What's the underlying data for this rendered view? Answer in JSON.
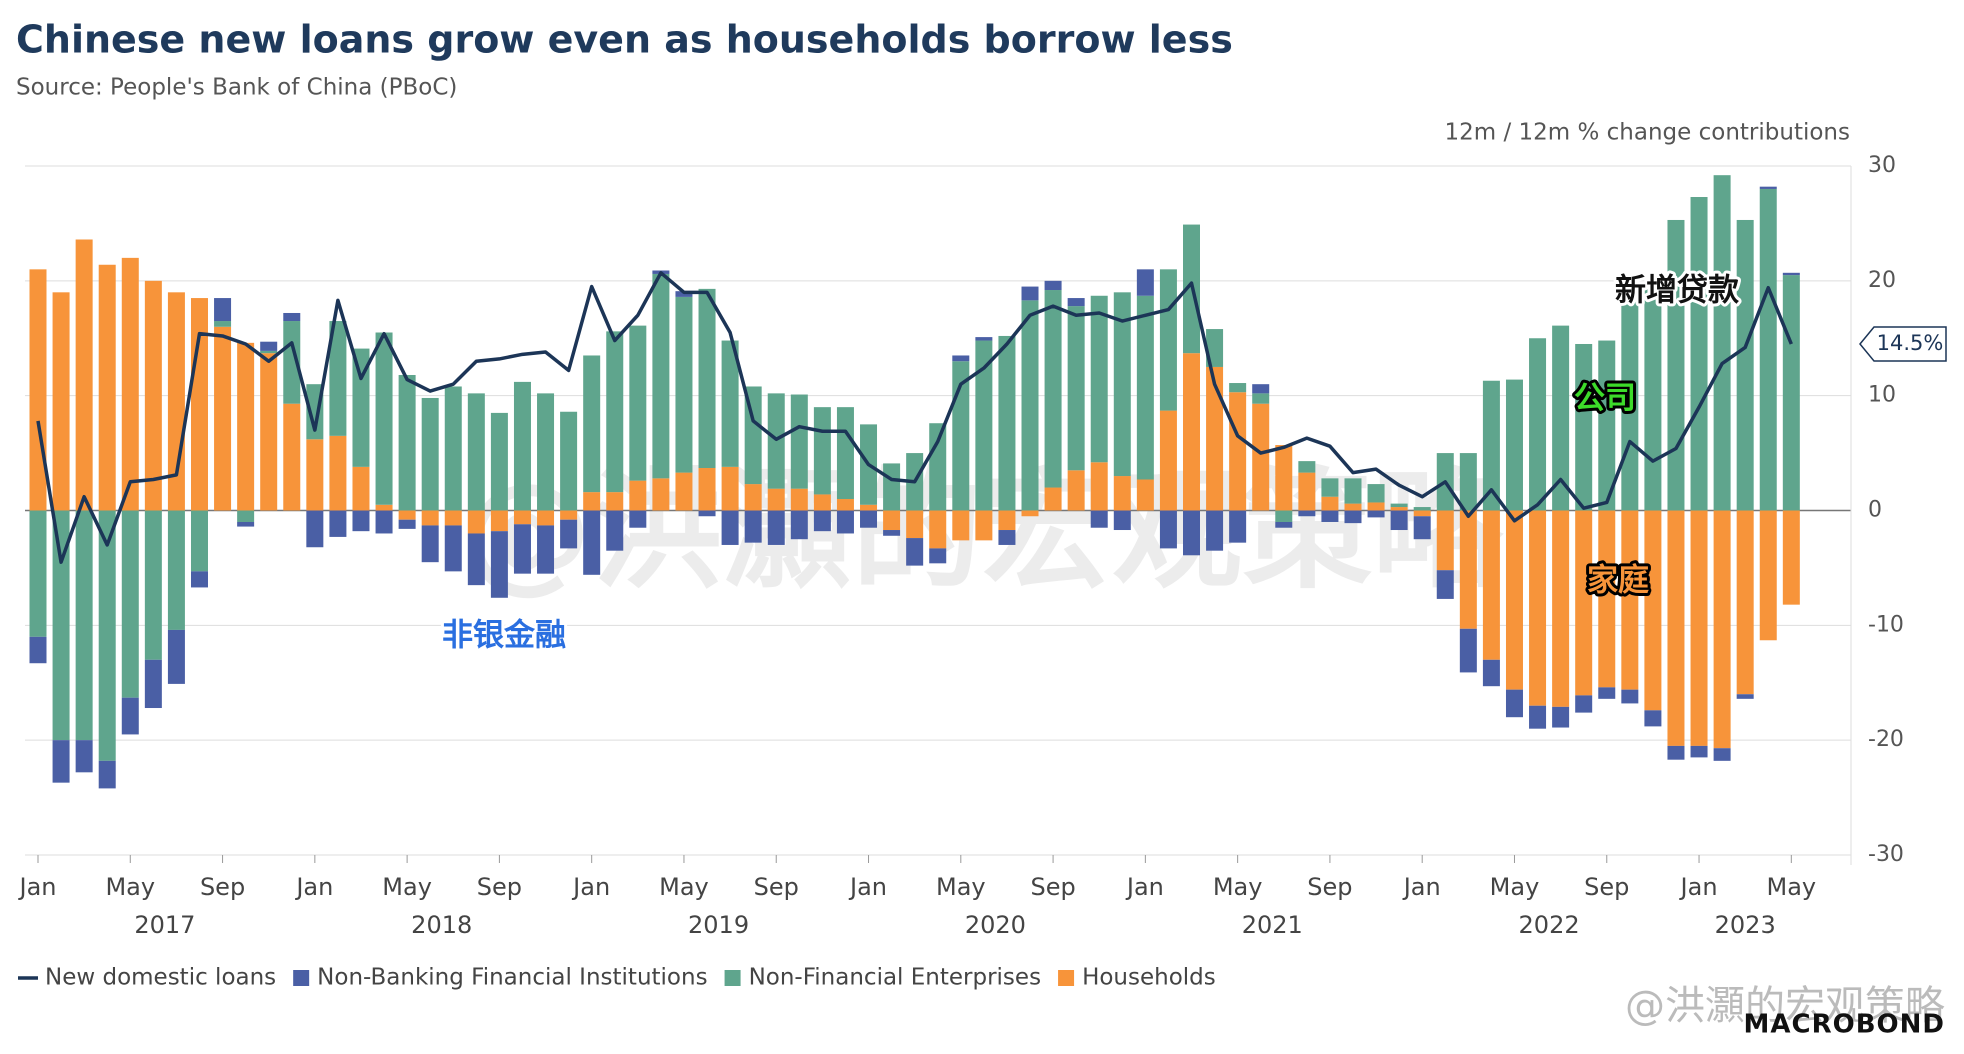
{
  "chart_data": {
    "type": "combo",
    "title": "Chinese new loans grow even as households borrow less",
    "subtitle": "Source: People's Bank of China (PBoC)",
    "axis_note": "12m / 12m % change contributions",
    "categories": [
      "Jan",
      null,
      null,
      null,
      "May",
      null,
      null,
      null,
      "Sep",
      null,
      null,
      null,
      "Jan",
      null,
      null,
      null,
      "May",
      null,
      null,
      null,
      "Sep",
      null,
      null,
      null,
      "Jan",
      null,
      null,
      null,
      "May",
      null,
      null,
      null,
      "Sep",
      null,
      null,
      null,
      "Jan",
      null,
      null,
      null,
      "May",
      null,
      null,
      null,
      "Sep",
      null,
      null,
      null,
      "Jan",
      null,
      null,
      null,
      "May",
      null,
      null,
      null,
      "Sep",
      null,
      null,
      null,
      "Jan",
      null,
      null,
      null,
      "May",
      null,
      null,
      null,
      "Sep",
      null,
      null,
      null,
      "Jan",
      null,
      null,
      null,
      "May"
    ],
    "years": [
      "2017",
      "2018",
      "2019",
      "2020",
      "2021",
      "2022",
      "2023"
    ],
    "ylim": [
      -30,
      30
    ],
    "yticks": [
      30,
      20,
      10,
      0,
      -10,
      -20,
      -30
    ],
    "grid": true,
    "series": [
      {
        "name": "New domestic loans",
        "type": "line",
        "color": "#1c3557",
        "values": [
          7.8,
          -4.5,
          1.2,
          -3,
          2.5,
          2.7,
          3.1,
          15.4,
          15.2,
          14.5,
          13,
          14.6,
          7,
          18.3,
          11.5,
          15.4,
          11.4,
          10.4,
          11,
          13,
          13.2,
          13.6,
          13.8,
          12.2,
          19.5,
          14.8,
          17,
          20.7,
          19,
          19,
          15.5,
          7.8,
          6.2,
          7.3,
          6.9,
          6.9,
          4,
          2.7,
          2.5,
          6,
          11,
          12.4,
          14.5,
          17,
          17.8,
          17,
          17.2,
          16.5,
          17,
          17.5,
          19.8,
          11,
          6.5,
          5,
          5.5,
          6.3,
          5.6,
          3.3,
          3.6,
          2.2,
          1.2,
          2.5,
          -0.5,
          1.8,
          -0.9,
          0.5,
          2.7,
          0.2,
          0.7,
          6,
          4.3,
          5.4,
          9,
          12.8,
          14.2,
          19.4,
          14.5
        ],
        "value_labels": [
          null,
          null,
          null,
          null,
          null,
          null,
          null,
          null,
          null,
          null,
          null,
          null,
          null,
          null,
          null,
          null,
          null,
          null,
          null,
          null,
          null,
          null,
          null,
          null,
          null,
          null,
          null,
          null,
          null,
          null,
          null,
          null,
          null,
          null,
          null,
          null,
          null,
          null,
          null,
          null,
          null,
          null,
          null,
          null,
          null,
          null,
          null,
          null,
          null,
          null,
          null,
          null,
          null,
          null,
          null,
          null,
          null,
          null,
          null,
          null,
          null,
          null,
          null,
          null,
          null,
          null,
          null,
          null,
          null,
          null,
          null,
          null,
          null,
          null,
          null,
          null,
          "14.5%"
        ]
      },
      {
        "name": "Non-Banking Financial Institutions",
        "type": "bar",
        "color": "#4a5fa5",
        "values": [
          -2.3,
          -3.7,
          -2.8,
          -2.4,
          -3.2,
          -4.2,
          -4.7,
          -1.4,
          2,
          -0.4,
          0.8,
          0.7,
          -3.2,
          -2.3,
          -1.8,
          -2,
          -0.8,
          -3.2,
          -4,
          -4.5,
          -5.8,
          -4.3,
          -4.2,
          -2.5,
          -5.6,
          -3.5,
          -1.5,
          0.3,
          0.5,
          -0.5,
          -3,
          -2.8,
          -3,
          -2.5,
          -1.8,
          -2,
          -1.5,
          -0.5,
          -2.4,
          -1.3,
          0.5,
          0.3,
          -1.3,
          1.2,
          0.8,
          0.7,
          -1.5,
          -1.7,
          2.3,
          -3.3,
          -3.9,
          -3.5,
          -2.8,
          0.8,
          -0.5,
          -0.5,
          -1,
          -1.1,
          -0.6,
          -1.7,
          -2,
          -2.5,
          -3.8,
          -2.3,
          -2.4,
          -2,
          -1.8,
          -1.5,
          -1,
          -1.2,
          -1.4,
          -1.2,
          -1,
          -1.1,
          -0.4,
          0.2,
          0.2
        ]
      },
      {
        "name": "Non-Financial Enterprises",
        "type": "bar",
        "color": "#5fa58d",
        "values": [
          -11,
          -20,
          -20,
          -21.8,
          -16.3,
          -13,
          -10.4,
          -5.3,
          0.5,
          -1,
          0.2,
          7.2,
          4.8,
          10,
          10.3,
          15,
          11.8,
          9.8,
          10.8,
          10.2,
          8.5,
          11.2,
          10.2,
          8.6,
          11.9,
          14,
          13.5,
          17.8,
          15.3,
          15.6,
          11,
          8.5,
          8.3,
          8.2,
          7.6,
          8,
          7,
          4.1,
          5,
          7.6,
          13,
          14.8,
          15.2,
          18.3,
          17.2,
          14.3,
          14.5,
          16,
          16,
          12.3,
          11.2,
          3.3,
          0.8,
          0.9,
          -1,
          1,
          1.6,
          2.2,
          1.6,
          0.3,
          0.3,
          5,
          5,
          11.3,
          11.4,
          15,
          16.1,
          14.5,
          14.8,
          19.5,
          20,
          25.3,
          27.3,
          29.2,
          25.3,
          28,
          20.5
        ]
      },
      {
        "name": "Households",
        "type": "bar",
        "color": "#f7943a",
        "values": [
          21,
          19,
          23.6,
          21.4,
          22,
          20,
          19,
          18.5,
          16,
          14.6,
          13.7,
          9.3,
          6.2,
          6.5,
          3.8,
          0.5,
          -0.8,
          -1.3,
          -1.3,
          -2,
          -1.8,
          -1.2,
          -1.3,
          -0.8,
          1.6,
          1.6,
          2.6,
          2.8,
          3.3,
          3.7,
          3.8,
          2.3,
          1.9,
          1.9,
          1.4,
          1,
          0.5,
          -1.7,
          -2.4,
          -3.3,
          -2.6,
          -2.6,
          -1.7,
          -0.5,
          2,
          3.5,
          4.2,
          3,
          2.7,
          8.7,
          13.7,
          12.5,
          10.3,
          9.3,
          5.7,
          3.3,
          1.2,
          0.6,
          0.7,
          0.3,
          -0.5,
          -5.2,
          -10.3,
          -13,
          -15.6,
          -17,
          -17.1,
          -16.1,
          -15.4,
          -15.6,
          -17.4,
          -20.5,
          -20.5,
          -20.7,
          -16,
          -11.3,
          -8.2
        ]
      }
    ],
    "annotations": {
      "loans": "新增贷款",
      "enterprises": "公司",
      "nbfi": "非银金融",
      "households": "家庭",
      "watermark": "@洪灝的宏观策略",
      "weibo": "@洪灝的宏观策略",
      "logo": "MACROBOND"
    }
  }
}
